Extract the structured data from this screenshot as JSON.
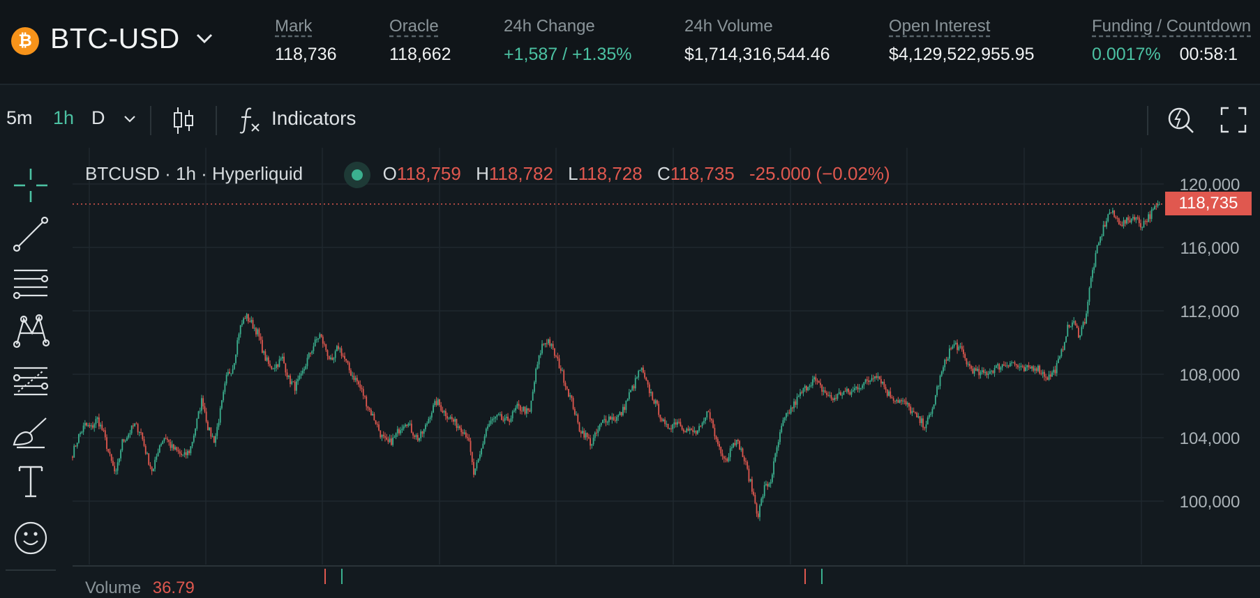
{
  "header": {
    "coin_symbol": "₿",
    "market": "BTC-USD",
    "stats": [
      {
        "label": "Mark",
        "value": "118,736",
        "underlined": true
      },
      {
        "label": "Oracle",
        "value": "118,662",
        "underlined": true
      },
      {
        "label": "24h Change",
        "value": "+1,587 / +1.35%",
        "underlined": false
      },
      {
        "label": "24h Volume",
        "value": "$1,714,316,544.46",
        "underlined": false
      },
      {
        "label": "Open Interest",
        "value": "$4,129,522,955.95",
        "underlined": true
      }
    ],
    "funding": {
      "label": "Funding / Countdown",
      "rate": "0.0017%",
      "countdown": "00:58:1"
    }
  },
  "toolbar": {
    "timeframes": [
      "5m",
      "1h",
      "D"
    ],
    "active_timeframe": "1h",
    "indicators_label": "Indicators",
    "icons": [
      "chevron-down-icon",
      "candlestick-icon",
      "function-icon",
      "flash-search-icon",
      "fullscreen-icon"
    ]
  },
  "drawing_tools": [
    "crosshair-icon",
    "trend-line-icon",
    "horizontal-lines-icon",
    "pattern-icon",
    "fib-retracement-icon",
    "brush-icon",
    "text-icon",
    "emoji-icon"
  ],
  "legend": {
    "title": "BTCUSD · 1h · Hyperliquid",
    "open_label": "O",
    "open": "118,759",
    "high_label": "H",
    "high": "118,782",
    "low_label": "L",
    "low": "118,728",
    "close_label": "C",
    "close": "118,735",
    "change": "-25.000 (−0.02%)"
  },
  "volume": {
    "label": "Volume",
    "value": "36.79"
  },
  "colors": {
    "up": "#3bb08f",
    "down": "#e0584f",
    "accent": "#4cc2a3",
    "background": "#131a1f"
  },
  "chart_data": {
    "type": "candlestick",
    "title": "BTCUSD · 1h · Hyperliquid",
    "yticks": [
      100000,
      104000,
      108000,
      112000,
      116000,
      120000
    ],
    "ytick_labels": [
      "100,000",
      "104,000",
      "108,000",
      "112,000",
      "116,000",
      "120,000"
    ],
    "ylim": [
      97500,
      120800
    ],
    "last_price": 118735,
    "last_price_label": "118,735",
    "grid": true,
    "close_path": [
      103000,
      104100,
      104800,
      104600,
      105200,
      104300,
      102800,
      101600,
      103700,
      104200,
      104800,
      104400,
      102900,
      101800,
      103500,
      104100,
      103400,
      103100,
      102800,
      103200,
      104800,
      106500,
      104500,
      103800,
      105800,
      107900,
      108500,
      110800,
      111700,
      111200,
      110600,
      109200,
      108400,
      108600,
      109000,
      107700,
      107200,
      107800,
      108900,
      109800,
      110500,
      109600,
      108600,
      109800,
      109000,
      108100,
      107600,
      106800,
      105800,
      105100,
      104100,
      103600,
      103900,
      104600,
      105100,
      104400,
      103900,
      104500,
      105600,
      106300,
      105700,
      105300,
      104900,
      104600,
      104100,
      101600,
      102900,
      104600,
      105100,
      105300,
      105000,
      105300,
      105900,
      105800,
      105500,
      108100,
      109800,
      110200,
      109300,
      108400,
      107200,
      106100,
      104600,
      104200,
      103600,
      104400,
      105100,
      105300,
      105200,
      105600,
      106600,
      107400,
      108400,
      107300,
      106500,
      105600,
      104600,
      104800,
      105100,
      104600,
      104400,
      104300,
      104700,
      105800,
      104100,
      103200,
      102600,
      103900,
      103500,
      102300,
      100800,
      99100,
      100800,
      101200,
      103200,
      104900,
      105600,
      106200,
      106800,
      107300,
      107700,
      107200,
      106800,
      106400,
      106700,
      106900,
      106800,
      107200,
      107400,
      107600,
      108100,
      107600,
      106800,
      106500,
      106300,
      106100,
      105600,
      105100,
      104800,
      105400,
      107100,
      108400,
      109500,
      109900,
      109400,
      108600,
      108200,
      108000,
      108100,
      108300,
      108500,
      108600,
      108800,
      108500,
      108200,
      108400,
      108500,
      108100,
      107800,
      108200,
      109100,
      110800,
      111300,
      110500,
      111500,
      114200,
      116000,
      117300,
      118300,
      117800,
      117500,
      117700,
      118000,
      117400,
      117800,
      118300,
      118735
    ]
  }
}
